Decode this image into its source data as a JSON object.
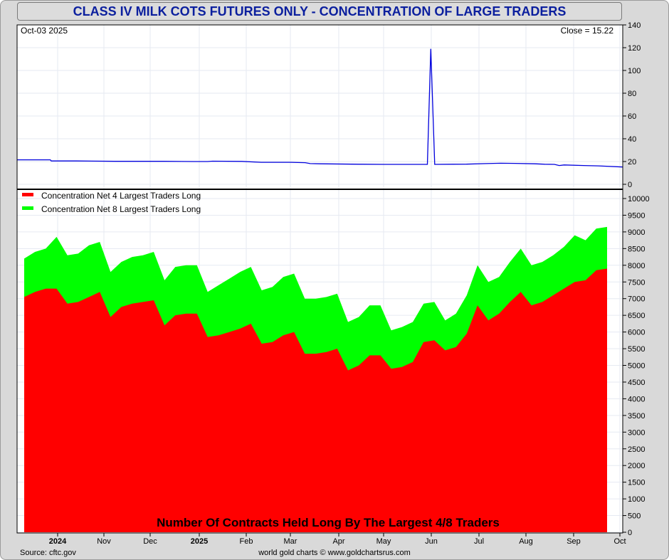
{
  "title": "CLASS IV MILK COTS FUTURES ONLY - CONCENTRATION OF LARGE TRADERS",
  "source": "Source: cftc.gov",
  "credit": "world gold charts © www.goldchartsrus.com",
  "colors": {
    "title": "#0b1f9e",
    "top_line": "#0000dd",
    "net4": "#ff0000",
    "net8": "#00ff00",
    "frame": "#d9d9d9"
  },
  "x_axis": {
    "labels": [
      {
        "text": "2024",
        "bold": true
      },
      {
        "text": "Nov",
        "bold": false
      },
      {
        "text": "Dec",
        "bold": false
      },
      {
        "text": "2025",
        "bold": true
      },
      {
        "text": "Feb",
        "bold": false
      },
      {
        "text": "Mar",
        "bold": false
      },
      {
        "text": "Apr",
        "bold": false
      },
      {
        "text": "May",
        "bold": false
      },
      {
        "text": "Jun",
        "bold": false
      },
      {
        "text": "Jul",
        "bold": false
      },
      {
        "text": "Aug",
        "bold": false
      },
      {
        "text": "Sep",
        "bold": false
      },
      {
        "text": "Oct",
        "bold": false
      }
    ]
  },
  "chart_data": [
    {
      "type": "line",
      "date_label": "Oct-03  2025",
      "close_label": "Close = 15.22",
      "ylim": [
        0,
        140
      ],
      "yticks": [
        0,
        20,
        40,
        60,
        80,
        100,
        120,
        140
      ],
      "series": [
        {
          "points": [
            [
              0,
              21.5
            ],
            [
              0.068,
              21.5
            ],
            [
              0.07,
              20.5
            ],
            [
              0.12,
              20.5
            ],
            [
              0.2,
              20.2
            ],
            [
              0.3,
              20.2
            ],
            [
              0.36,
              20
            ],
            [
              0.39,
              20
            ],
            [
              0.4,
              20.3
            ],
            [
              0.46,
              20.1
            ],
            [
              0.5,
              19.3
            ],
            [
              0.56,
              19.3
            ],
            [
              0.59,
              19
            ],
            [
              0.6,
              18.2
            ],
            [
              0.62,
              18
            ],
            [
              0.7,
              17.6
            ],
            [
              0.75,
              17.5
            ],
            [
              0.77,
              17.5
            ],
            [
              0.835,
              17.5
            ],
            [
              0.84,
              17.5
            ],
            [
              0.847,
              119
            ],
            [
              0.855,
              17.5
            ],
            [
              0.92,
              17.7
            ],
            [
              0.96,
              18.2
            ],
            [
              0.99,
              18.5
            ],
            [
              1.02,
              18.4
            ],
            [
              1.06,
              18
            ],
            [
              1.08,
              17.6
            ],
            [
              1.1,
              17.5
            ],
            [
              1.11,
              16.5
            ],
            [
              1.12,
              17
            ],
            [
              1.16,
              16.5
            ],
            [
              1.19,
              16.2
            ],
            [
              1.24,
              15.2
            ]
          ]
        }
      ]
    },
    {
      "type": "area",
      "title": "Number Of Contracts Held Long By The Largest 4/8 Traders",
      "ylim": [
        0,
        10000
      ],
      "yticks": [
        0,
        500,
        1000,
        1500,
        2000,
        2500,
        3000,
        3500,
        4000,
        4500,
        5000,
        5500,
        6000,
        6500,
        7000,
        7500,
        8000,
        8500,
        9000,
        9500,
        10000
      ],
      "series": [
        {
          "name": "Concentration Net 4 Largest Traders Long",
          "values": [
            7050,
            7200,
            7300,
            7300,
            6850,
            6900,
            7050,
            7200,
            6450,
            6750,
            6850,
            6900,
            6950,
            6200,
            6500,
            6550,
            6550,
            5850,
            5900,
            6000,
            6100,
            6250,
            5650,
            5700,
            5900,
            6000,
            5350,
            5350,
            5400,
            5500,
            4850,
            5000,
            5300,
            5300,
            4900,
            4950,
            5100,
            5700,
            5750,
            5450,
            5550,
            5950,
            6800,
            6350,
            6550,
            6900,
            7200,
            6800,
            6900,
            7100,
            7300,
            7500,
            7550,
            7850,
            7900
          ]
        },
        {
          "name": "Concentration Net 8 Largest Traders Long",
          "values": [
            8200,
            8400,
            8500,
            8850,
            8300,
            8350,
            8600,
            8700,
            7800,
            8100,
            8250,
            8300,
            8400,
            7550,
            7950,
            8000,
            8000,
            7200,
            7400,
            7600,
            7800,
            7950,
            7250,
            7350,
            7650,
            7750,
            7000,
            7000,
            7050,
            7150,
            6300,
            6450,
            6800,
            6800,
            6050,
            6150,
            6300,
            6850,
            6900,
            6350,
            6550,
            7100,
            8000,
            7500,
            7650,
            8100,
            8500,
            8000,
            8100,
            8300,
            8550,
            8900,
            8750,
            9100,
            9150
          ]
        }
      ]
    }
  ]
}
